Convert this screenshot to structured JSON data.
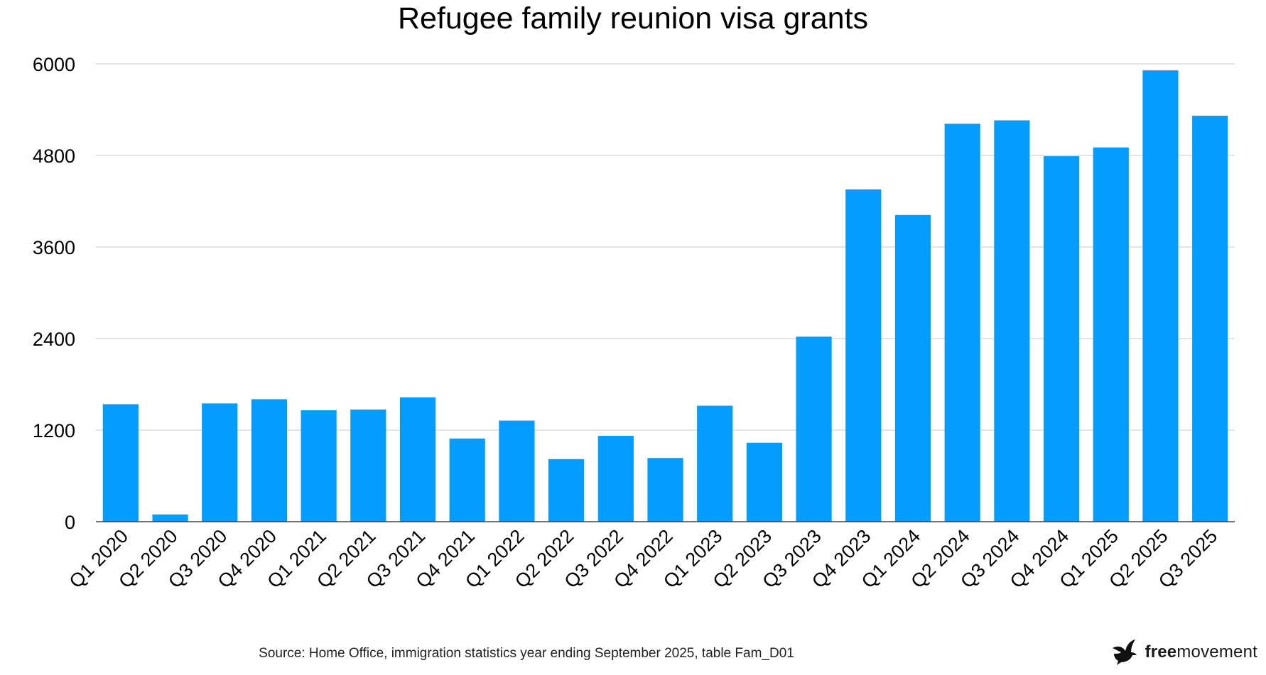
{
  "chart_data": {
    "type": "bar",
    "title": "Refugee family reunion visa grants",
    "xlabel": "",
    "ylabel": "",
    "categories": [
      "Q1 2020",
      "Q2 2020",
      "Q3 2020",
      "Q4 2020",
      "Q1 2021",
      "Q2 2021",
      "Q3 2021",
      "Q4 2021",
      "Q1 2022",
      "Q2 2022",
      "Q3 2022",
      "Q4 2022",
      "Q1 2023",
      "Q2 2023",
      "Q3 2023",
      "Q4 2023",
      "Q1 2024",
      "Q2 2024",
      "Q3 2024",
      "Q4 2024",
      "Q1 2025",
      "Q2 2025",
      "Q3 2025"
    ],
    "values": [
      1540,
      95,
      1550,
      1605,
      1460,
      1470,
      1630,
      1090,
      1325,
      820,
      1125,
      835,
      1520,
      1035,
      2425,
      4355,
      4020,
      5215,
      5260,
      4790,
      4905,
      5915,
      5320
    ],
    "ylim": [
      0,
      6000
    ],
    "yticks": [
      0,
      1200,
      2400,
      3600,
      4800,
      6000
    ],
    "grid": true,
    "legend": "none",
    "bar_color": "#049DFF",
    "grid_color": "#C8C8C8",
    "axis_color": "#444444"
  },
  "footer": {
    "source": "Source: Home Office, immigration statistics year ending September 2025, table Fam_D01",
    "brand_bold": "free",
    "brand_regular": "movement",
    "brand_icon": "bird-icon"
  }
}
